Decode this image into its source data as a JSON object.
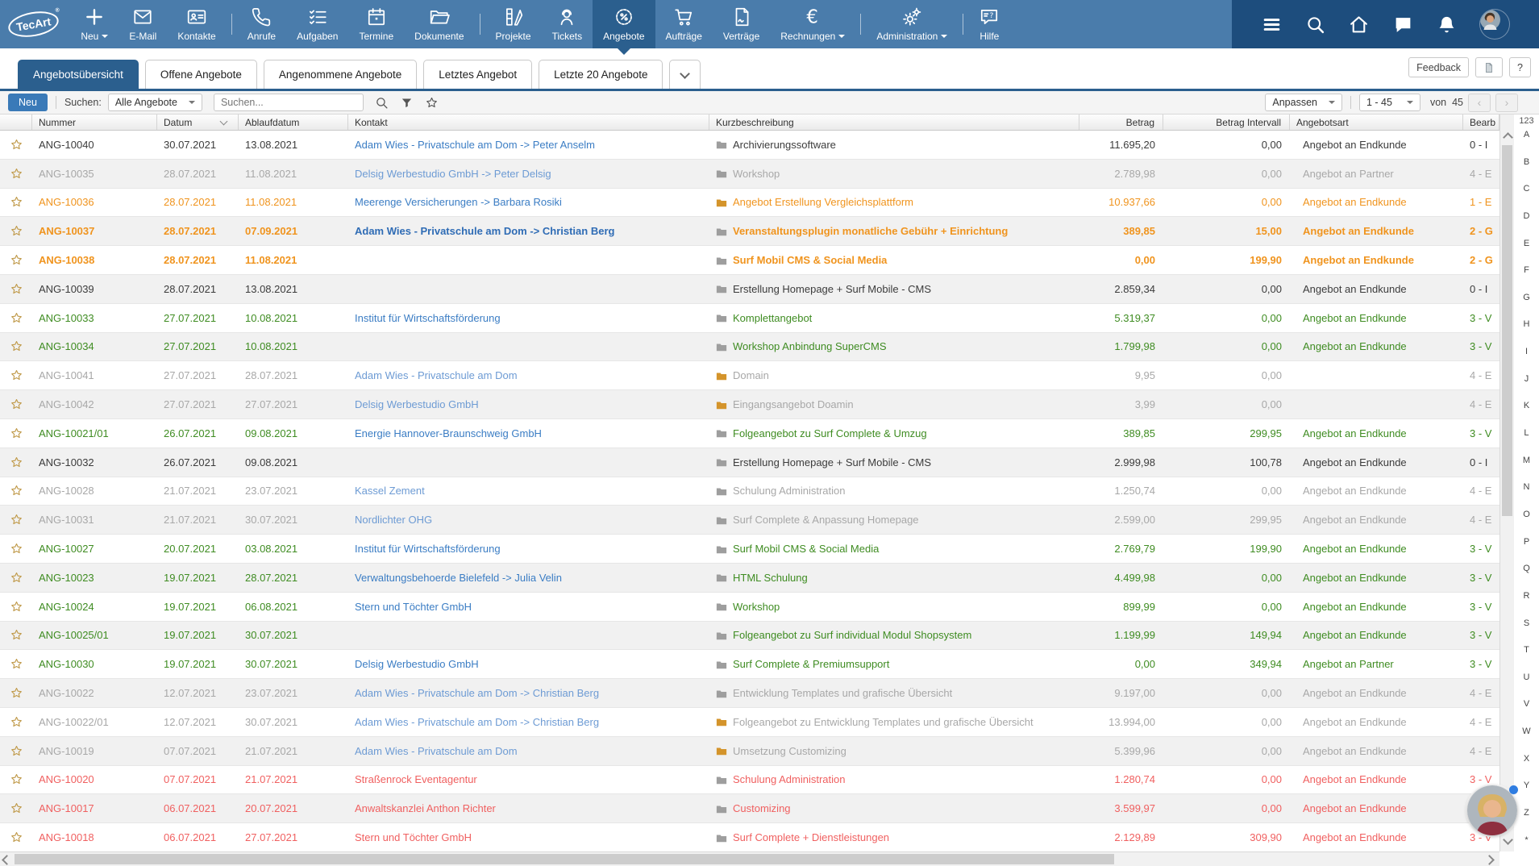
{
  "colors": {
    "nav_bg": "#4a7cab",
    "nav_active": "#2b5f8e",
    "nav_dark": "#1d4d7d",
    "accent_blue": "#3a7ab8",
    "link_blue": "#3b7dc4",
    "status_orange": "#f0941e",
    "status_green": "#3f8c22",
    "status_red": "#f06060",
    "status_gray": "#a8a8a8",
    "folder_orange": "#d4942b",
    "folder_gray": "#9e9e9e"
  },
  "nav": {
    "logo_text": "TecArt",
    "logo_reg": "®",
    "items": [
      {
        "label": "Neu",
        "icon": "plus-icon",
        "caret": true
      },
      {
        "label": "E-Mail",
        "icon": "mail-icon"
      },
      {
        "label": "Kontakte",
        "icon": "contact-card-icon"
      },
      {
        "divider": true
      },
      {
        "label": "Anrufe",
        "icon": "phone-icon"
      },
      {
        "label": "Aufgaben",
        "icon": "tasks-icon"
      },
      {
        "label": "Termine",
        "icon": "calendar-icon"
      },
      {
        "label": "Dokumente",
        "icon": "folder-open-icon"
      },
      {
        "divider": true
      },
      {
        "label": "Projekte",
        "icon": "projects-icon"
      },
      {
        "label": "Tickets",
        "icon": "support-person-icon"
      },
      {
        "label": "Angebote",
        "icon": "offer-badge-icon",
        "active": true
      },
      {
        "label": "Aufträge",
        "icon": "cart-icon"
      },
      {
        "label": "Verträge",
        "icon": "contract-icon"
      },
      {
        "label": "Rechnungen",
        "icon": "euro-icon",
        "caret": true
      },
      {
        "divider": true
      },
      {
        "label": "Administration",
        "icon": "gears-icon",
        "caret": true
      },
      {
        "divider": true
      },
      {
        "label": "Hilfe",
        "icon": "help-bubble-icon"
      }
    ],
    "utility": [
      {
        "name": "menu-icon",
        "icon": "hamburger-icon"
      },
      {
        "name": "global-search-icon",
        "icon": "search-icon"
      },
      {
        "name": "home-icon",
        "icon": "home-icon"
      },
      {
        "name": "chat-icon",
        "icon": "chat-icon"
      },
      {
        "name": "notifications-icon",
        "icon": "bell-icon"
      },
      {
        "name": "user-avatar",
        "icon": "avatar-user"
      }
    ]
  },
  "tabs": {
    "items": [
      "Angebotsübersicht",
      "Offene Angebote",
      "Angenommene Angebote",
      "Letztes Angebot",
      "Letzte 20 Angebote"
    ],
    "active_index": 0,
    "actions": {
      "feedback": "Feedback",
      "help": "?"
    }
  },
  "toolbar": {
    "new_label": "Neu",
    "search_label": "Suchen:",
    "filter_select": "Alle Angebote",
    "search_placeholder": "Suchen...",
    "customize_label": "Anpassen",
    "range_value": "1 - 45",
    "of_label": "von",
    "total": "45",
    "prev": "‹",
    "next": "›"
  },
  "table": {
    "columns": [
      "",
      "Nummer",
      "Datum",
      "Ablaufdatum",
      "Kontakt",
      "Kurzbeschreibung",
      "Betrag",
      "Betrag Intervall",
      "Angebotsart",
      "Bearb"
    ],
    "sorted_column": "Datum",
    "rows": [
      {
        "nummer": "ANG-10040",
        "datum": "30.07.2021",
        "ablauf": "13.08.2021",
        "kontakt": "Adam Wies - Privatschule am Dom -> Peter Anselm",
        "beschreibung": "Archivierungssoftware",
        "betrag": "11.695,20",
        "intervall": "0,00",
        "art": "Angebot an Endkunde",
        "bearb": "0 - I",
        "status": "black",
        "folder": "gray"
      },
      {
        "nummer": "ANG-10035",
        "datum": "28.07.2021",
        "ablauf": "11.08.2021",
        "kontakt": "Delsig Werbestudio GmbH -> Peter Delsig",
        "beschreibung": "Workshop",
        "betrag": "2.789,98",
        "intervall": "0,00",
        "art": "Angebot an Partner",
        "bearb": "4 - E",
        "status": "gray",
        "folder": "gray"
      },
      {
        "nummer": "ANG-10036",
        "datum": "28.07.2021",
        "ablauf": "11.08.2021",
        "kontakt": "Meerenge Versicherungen -> Barbara Rosiki",
        "beschreibung": "Angebot Erstellung Vergleichsplattform",
        "betrag": "10.937,66",
        "intervall": "0,00",
        "art": "Angebot an Endkunde",
        "bearb": "1 - E",
        "status": "orange",
        "folder": "orange"
      },
      {
        "nummer": "ANG-10037",
        "datum": "28.07.2021",
        "ablauf": "07.09.2021",
        "kontakt": "Adam Wies - Privatschule am Dom -> Christian Berg",
        "beschreibung": "Veranstaltungsplugin monatliche Gebühr + Einrichtung",
        "betrag": "389,85",
        "intervall": "15,00",
        "art": "Angebot an Endkunde",
        "bearb": "2 - G",
        "status": "orange-b",
        "folder": "gray"
      },
      {
        "nummer": "ANG-10038",
        "datum": "28.07.2021",
        "ablauf": "11.08.2021",
        "kontakt": "",
        "beschreibung": "Surf Mobil CMS & Social Media",
        "betrag": "0,00",
        "intervall": "199,90",
        "art": "Angebot an Endkunde",
        "bearb": "2 - G",
        "status": "orange-b",
        "folder": "gray"
      },
      {
        "nummer": "ANG-10039",
        "datum": "28.07.2021",
        "ablauf": "13.08.2021",
        "kontakt": "",
        "beschreibung": "Erstellung Homepage + Surf Mobile - CMS",
        "betrag": "2.859,34",
        "intervall": "0,00",
        "art": "Angebot an Endkunde",
        "bearb": "0 - I",
        "status": "black",
        "folder": "gray"
      },
      {
        "nummer": "ANG-10033",
        "datum": "27.07.2021",
        "ablauf": "10.08.2021",
        "kontakt": "Institut für Wirtschaftsförderung",
        "beschreibung": "Komplettangebot",
        "betrag": "5.319,37",
        "intervall": "0,00",
        "art": "Angebot an Endkunde",
        "bearb": "3 - V",
        "status": "green",
        "folder": "gray"
      },
      {
        "nummer": "ANG-10034",
        "datum": "27.07.2021",
        "ablauf": "10.08.2021",
        "kontakt": "",
        "beschreibung": "Workshop Anbindung SuperCMS",
        "betrag": "1.799,98",
        "intervall": "0,00",
        "art": "Angebot an Endkunde",
        "bearb": "3 - V",
        "status": "green",
        "folder": "gray"
      },
      {
        "nummer": "ANG-10041",
        "datum": "27.07.2021",
        "ablauf": "28.07.2021",
        "kontakt": "Adam Wies - Privatschule am Dom",
        "beschreibung": "Domain",
        "betrag": "9,95",
        "intervall": "0,00",
        "art": "",
        "bearb": "4 - E",
        "status": "gray",
        "folder": "orange"
      },
      {
        "nummer": "ANG-10042",
        "datum": "27.07.2021",
        "ablauf": "27.07.2021",
        "kontakt": "Delsig Werbestudio GmbH",
        "beschreibung": "Eingangsangebot Doamin",
        "betrag": "3,99",
        "intervall": "0,00",
        "art": "",
        "bearb": "4 - E",
        "status": "gray",
        "folder": "orange"
      },
      {
        "nummer": "ANG-10021/01",
        "datum": "26.07.2021",
        "ablauf": "09.08.2021",
        "kontakt": "Energie Hannover-Braunschweig GmbH",
        "beschreibung": "Folgeangebot zu Surf Complete & Umzug",
        "betrag": "389,85",
        "intervall": "299,95",
        "art": "Angebot an Endkunde",
        "bearb": "3 - V",
        "status": "green",
        "folder": "gray"
      },
      {
        "nummer": "ANG-10032",
        "datum": "26.07.2021",
        "ablauf": "09.08.2021",
        "kontakt": "",
        "beschreibung": "Erstellung Homepage + Surf Mobile - CMS",
        "betrag": "2.999,98",
        "intervall": "100,78",
        "art": "Angebot an Endkunde",
        "bearb": "0 - I",
        "status": "black",
        "folder": "gray"
      },
      {
        "nummer": "ANG-10028",
        "datum": "21.07.2021",
        "ablauf": "23.07.2021",
        "kontakt": "Kassel Zement",
        "beschreibung": "Schulung Administration",
        "betrag": "1.250,74",
        "intervall": "0,00",
        "art": "Angebot an Endkunde",
        "bearb": "4 - E",
        "status": "gray",
        "folder": "gray"
      },
      {
        "nummer": "ANG-10031",
        "datum": "21.07.2021",
        "ablauf": "30.07.2021",
        "kontakt": "Nordlichter OHG",
        "beschreibung": "Surf Complete & Anpassung Homepage",
        "betrag": "2.599,00",
        "intervall": "299,95",
        "art": "Angebot an Endkunde",
        "bearb": "4 - E",
        "status": "gray",
        "folder": "gray"
      },
      {
        "nummer": "ANG-10027",
        "datum": "20.07.2021",
        "ablauf": "03.08.2021",
        "kontakt": "Institut für Wirtschaftsförderung",
        "beschreibung": "Surf Mobil CMS & Social Media",
        "betrag": "2.769,79",
        "intervall": "199,90",
        "art": "Angebot an Endkunde",
        "bearb": "3 - V",
        "status": "green",
        "folder": "gray"
      },
      {
        "nummer": "ANG-10023",
        "datum": "19.07.2021",
        "ablauf": "28.07.2021",
        "kontakt": "Verwaltungsbehoerde Bielefeld -> Julia Velin",
        "beschreibung": "HTML Schulung",
        "betrag": "4.499,98",
        "intervall": "0,00",
        "art": "Angebot an Endkunde",
        "bearb": "3 - V",
        "status": "green",
        "folder": "gray"
      },
      {
        "nummer": "ANG-10024",
        "datum": "19.07.2021",
        "ablauf": "06.08.2021",
        "kontakt": "Stern und Töchter GmbH",
        "beschreibung": "Workshop",
        "betrag": "899,99",
        "intervall": "0,00",
        "art": "Angebot an Endkunde",
        "bearb": "3 - V",
        "status": "green",
        "folder": "gray"
      },
      {
        "nummer": "ANG-10025/01",
        "datum": "19.07.2021",
        "ablauf": "30.07.2021",
        "kontakt": "",
        "beschreibung": "Folgeangebot zu Surf individual Modul Shopsystem",
        "betrag": "1.199,99",
        "intervall": "149,94",
        "art": "Angebot an Endkunde",
        "bearb": "3 - V",
        "status": "green",
        "folder": "gray"
      },
      {
        "nummer": "ANG-10030",
        "datum": "19.07.2021",
        "ablauf": "30.07.2021",
        "kontakt": "Delsig Werbestudio GmbH",
        "beschreibung": "Surf Complete & Premiumsupport",
        "betrag": "0,00",
        "intervall": "349,94",
        "art": "Angebot an Partner",
        "bearb": "3 - V",
        "status": "green",
        "folder": "gray"
      },
      {
        "nummer": "ANG-10022",
        "datum": "12.07.2021",
        "ablauf": "23.07.2021",
        "kontakt": "Adam Wies - Privatschule am Dom -> Christian Berg",
        "beschreibung": "Entwicklung Templates und grafische Übersicht",
        "betrag": "9.197,00",
        "intervall": "0,00",
        "art": "Angebot an Endkunde",
        "bearb": "4 - E",
        "status": "gray",
        "folder": "gray"
      },
      {
        "nummer": "ANG-10022/01",
        "datum": "12.07.2021",
        "ablauf": "30.07.2021",
        "kontakt": "Adam Wies - Privatschule am Dom -> Christian Berg",
        "beschreibung": "Folgeangebot zu Entwicklung Templates und grafische Übersicht",
        "betrag": "13.994,00",
        "intervall": "0,00",
        "art": "Angebot an Endkunde",
        "bearb": "4 - E",
        "status": "gray",
        "folder": "orange"
      },
      {
        "nummer": "ANG-10019",
        "datum": "07.07.2021",
        "ablauf": "21.07.2021",
        "kontakt": "Adam Wies - Privatschule am Dom",
        "beschreibung": "Umsetzung Customizing",
        "betrag": "5.399,96",
        "intervall": "0,00",
        "art": "Angebot an Endkunde",
        "bearb": "4 - E",
        "status": "gray",
        "folder": "orange"
      },
      {
        "nummer": "ANG-10020",
        "datum": "07.07.2021",
        "ablauf": "21.07.2021",
        "kontakt": "Straßenrock Eventagentur",
        "beschreibung": "Schulung Administration",
        "betrag": "1.280,74",
        "intervall": "0,00",
        "art": "Angebot an Endkunde",
        "bearb": "3 - V",
        "status": "red",
        "folder": "gray"
      },
      {
        "nummer": "ANG-10017",
        "datum": "06.07.2021",
        "ablauf": "20.07.2021",
        "kontakt": "Anwaltskanzlei Anthon Richter",
        "beschreibung": "Customizing",
        "betrag": "3.599,97",
        "intervall": "0,00",
        "art": "Angebot an Endkunde",
        "bearb": "",
        "status": "red",
        "folder": "gray"
      },
      {
        "nummer": "ANG-10018",
        "datum": "06.07.2021",
        "ablauf": "27.07.2021",
        "kontakt": "Stern und Töchter GmbH",
        "beschreibung": "Surf Complete + Dienstleistungen",
        "betrag": "2.129,89",
        "intervall": "309,90",
        "art": "Angebot an Endkunde",
        "bearb": "3 - V",
        "status": "red",
        "folder": "gray"
      }
    ]
  },
  "alphabet": {
    "header": "123",
    "letters": [
      "A",
      "B",
      "C",
      "D",
      "E",
      "F",
      "G",
      "H",
      "I",
      "J",
      "K",
      "L",
      "M",
      "N",
      "O",
      "P",
      "Q",
      "R",
      "S",
      "T",
      "U",
      "V",
      "W",
      "X",
      "Y",
      "Z"
    ],
    "footer": "*"
  }
}
